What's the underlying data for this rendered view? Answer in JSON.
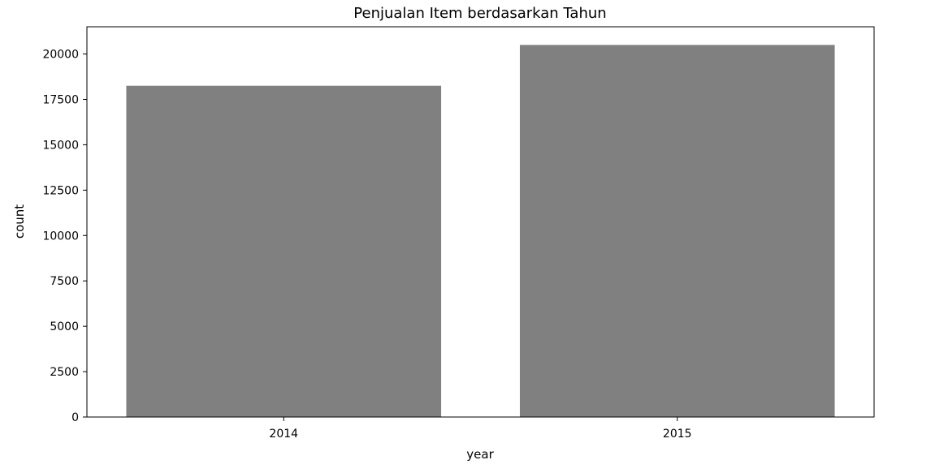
{
  "chart_data": {
    "type": "bar",
    "title": "Penjualan Item berdasarkan Tahun",
    "xlabel": "year",
    "ylabel": "count",
    "categories": [
      "2014",
      "2015"
    ],
    "values": [
      18250,
      20500
    ],
    "ylim": [
      0,
      21500
    ],
    "yticks": [
      0,
      2500,
      5000,
      7500,
      10000,
      12500,
      15000,
      17500,
      20000
    ],
    "grid": false,
    "legend": "none",
    "bar_color": "#808080"
  }
}
